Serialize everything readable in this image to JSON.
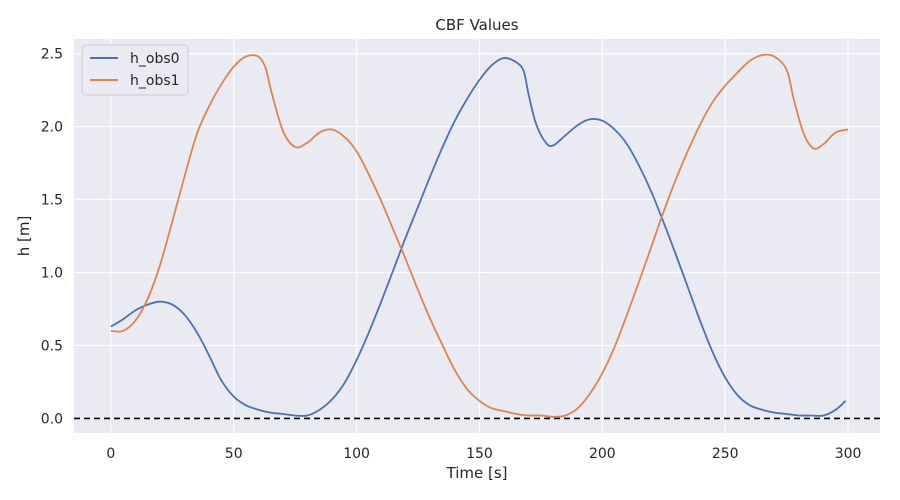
{
  "chart_data": {
    "type": "line",
    "title": "CBF Values",
    "xlabel": "Time [s]",
    "ylabel": "h [m]",
    "xlim": [
      -15,
      313
    ],
    "ylim": [
      -0.1,
      2.6
    ],
    "xticks": [
      0,
      50,
      100,
      150,
      200,
      250,
      300
    ],
    "yticks": [
      0.0,
      0.5,
      1.0,
      1.5,
      2.0,
      2.5
    ],
    "grid": true,
    "legend_position": "top-left",
    "reference_line": {
      "y": 0.0,
      "style": "dashed",
      "color": "#000000"
    },
    "series": [
      {
        "name": "h_obs0",
        "color": "#4c72b0",
        "points": [
          [
            0,
            0.63
          ],
          [
            5,
            0.68
          ],
          [
            10,
            0.74
          ],
          [
            15,
            0.78
          ],
          [
            20,
            0.8
          ],
          [
            25,
            0.78
          ],
          [
            30,
            0.71
          ],
          [
            35,
            0.59
          ],
          [
            40,
            0.43
          ],
          [
            45,
            0.26
          ],
          [
            50,
            0.15
          ],
          [
            55,
            0.09
          ],
          [
            60,
            0.06
          ],
          [
            65,
            0.04
          ],
          [
            70,
            0.03
          ],
          [
            75,
            0.02
          ],
          [
            80,
            0.02
          ],
          [
            85,
            0.06
          ],
          [
            90,
            0.13
          ],
          [
            95,
            0.24
          ],
          [
            100,
            0.4
          ],
          [
            105,
            0.59
          ],
          [
            110,
            0.8
          ],
          [
            115,
            1.02
          ],
          [
            120,
            1.24
          ],
          [
            125,
            1.45
          ],
          [
            130,
            1.66
          ],
          [
            135,
            1.86
          ],
          [
            140,
            2.04
          ],
          [
            145,
            2.19
          ],
          [
            150,
            2.32
          ],
          [
            155,
            2.42
          ],
          [
            160,
            2.47
          ],
          [
            165,
            2.44
          ],
          [
            168,
            2.38
          ],
          [
            170,
            2.22
          ],
          [
            173,
            2.02
          ],
          [
            177,
            1.89
          ],
          [
            180,
            1.87
          ],
          [
            185,
            1.94
          ],
          [
            190,
            2.01
          ],
          [
            195,
            2.05
          ],
          [
            200,
            2.04
          ],
          [
            205,
            1.98
          ],
          [
            210,
            1.88
          ],
          [
            215,
            1.73
          ],
          [
            220,
            1.55
          ],
          [
            225,
            1.34
          ],
          [
            230,
            1.12
          ],
          [
            235,
            0.89
          ],
          [
            240,
            0.66
          ],
          [
            245,
            0.45
          ],
          [
            250,
            0.28
          ],
          [
            255,
            0.16
          ],
          [
            260,
            0.09
          ],
          [
            265,
            0.06
          ],
          [
            270,
            0.04
          ],
          [
            275,
            0.03
          ],
          [
            280,
            0.02
          ],
          [
            285,
            0.02
          ],
          [
            290,
            0.02
          ],
          [
            295,
            0.06
          ],
          [
            299,
            0.12
          ]
        ]
      },
      {
        "name": "h_obs1",
        "color": "#dd8452",
        "points": [
          [
            0,
            0.6
          ],
          [
            5,
            0.6
          ],
          [
            10,
            0.67
          ],
          [
            15,
            0.82
          ],
          [
            20,
            1.05
          ],
          [
            25,
            1.35
          ],
          [
            30,
            1.66
          ],
          [
            35,
            1.95
          ],
          [
            40,
            2.14
          ],
          [
            45,
            2.29
          ],
          [
            50,
            2.41
          ],
          [
            55,
            2.48
          ],
          [
            60,
            2.48
          ],
          [
            63,
            2.4
          ],
          [
            65,
            2.26
          ],
          [
            70,
            1.97
          ],
          [
            75,
            1.86
          ],
          [
            80,
            1.89
          ],
          [
            85,
            1.96
          ],
          [
            90,
            1.98
          ],
          [
            95,
            1.93
          ],
          [
            100,
            1.83
          ],
          [
            105,
            1.67
          ],
          [
            110,
            1.49
          ],
          [
            115,
            1.29
          ],
          [
            120,
            1.09
          ],
          [
            125,
            0.88
          ],
          [
            130,
            0.68
          ],
          [
            135,
            0.5
          ],
          [
            140,
            0.33
          ],
          [
            145,
            0.2
          ],
          [
            150,
            0.12
          ],
          [
            155,
            0.07
          ],
          [
            160,
            0.05
          ],
          [
            165,
            0.03
          ],
          [
            170,
            0.02
          ],
          [
            175,
            0.02
          ],
          [
            180,
            0.01
          ],
          [
            185,
            0.02
          ],
          [
            190,
            0.07
          ],
          [
            195,
            0.17
          ],
          [
            200,
            0.31
          ],
          [
            205,
            0.49
          ],
          [
            210,
            0.71
          ],
          [
            215,
            0.94
          ],
          [
            220,
            1.18
          ],
          [
            225,
            1.42
          ],
          [
            230,
            1.64
          ],
          [
            235,
            1.84
          ],
          [
            240,
            2.02
          ],
          [
            245,
            2.17
          ],
          [
            250,
            2.28
          ],
          [
            255,
            2.37
          ],
          [
            260,
            2.45
          ],
          [
            265,
            2.49
          ],
          [
            270,
            2.48
          ],
          [
            275,
            2.39
          ],
          [
            278,
            2.18
          ],
          [
            282,
            1.95
          ],
          [
            286,
            1.85
          ],
          [
            290,
            1.88
          ],
          [
            295,
            1.96
          ],
          [
            300,
            1.98
          ]
        ]
      }
    ]
  }
}
